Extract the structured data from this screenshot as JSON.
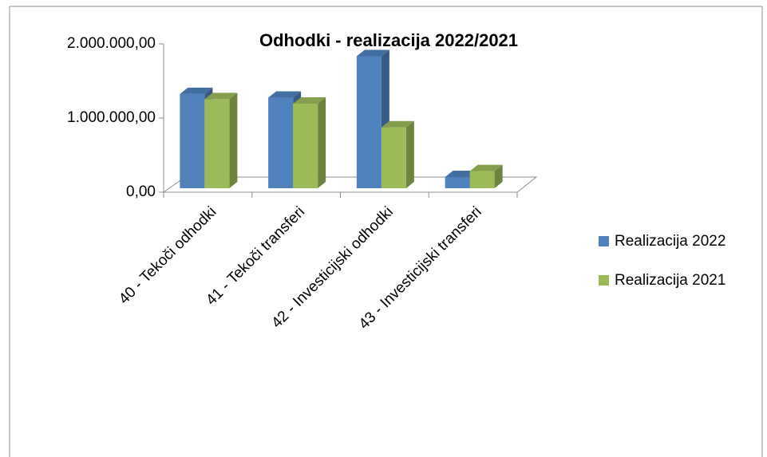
{
  "chart_data": {
    "type": "bar3d",
    "title": "Odhodki - realizacija 2022/2021",
    "categories": [
      "40 - Tekoči odhodki",
      "41 - Tekoči transferi",
      "42 - Investicijski odhodki",
      "43 - Investicijski transferi"
    ],
    "series": [
      {
        "name": "Realizacija 2022",
        "color": "#4f81bd",
        "values": [
          1270000,
          1220000,
          1780000,
          150000
        ]
      },
      {
        "name": "Realizacija 2021",
        "color": "#9bbb59",
        "values": [
          1200000,
          1140000,
          820000,
          230000
        ]
      }
    ],
    "ylim": [
      0,
      2000000
    ],
    "yticks": [
      {
        "value": 0,
        "label": "0,00"
      },
      {
        "value": 1000000,
        "label": "1.000.000,00"
      },
      {
        "value": 2000000,
        "label": "2.000.000,00"
      }
    ],
    "legend": "right"
  }
}
